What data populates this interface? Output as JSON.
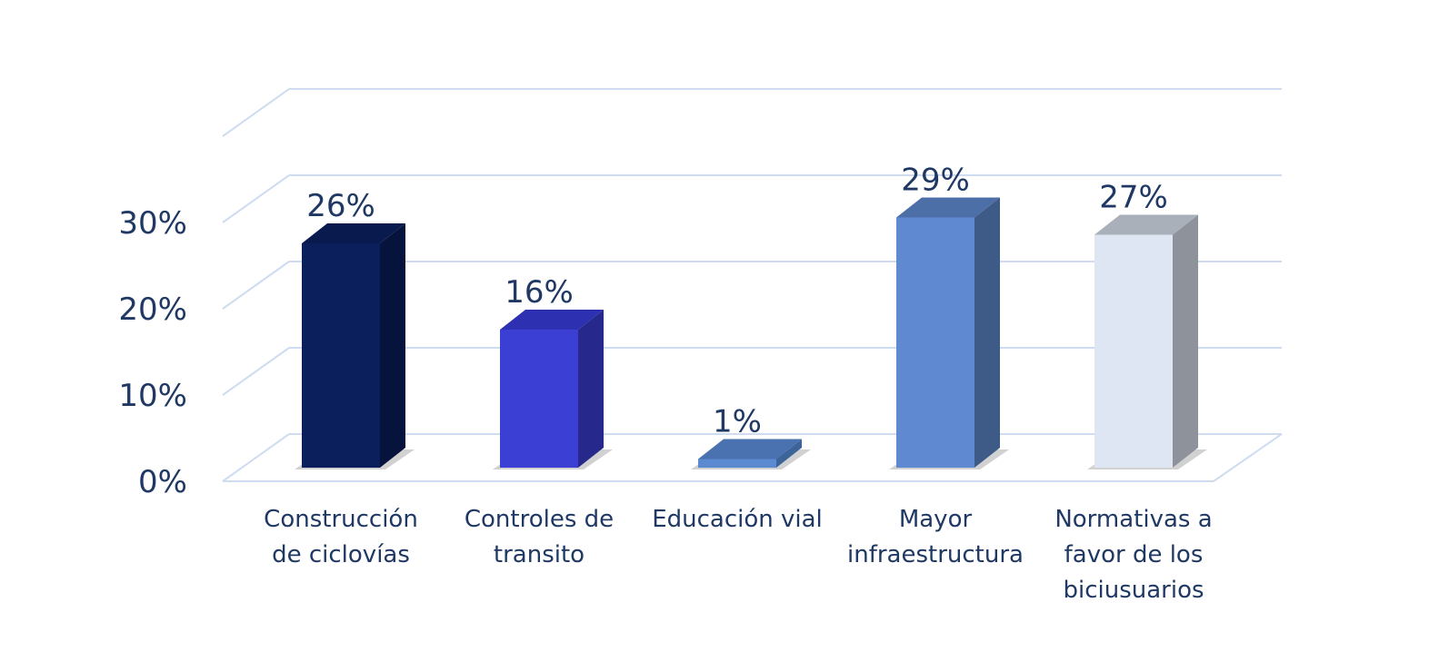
{
  "chart_data": {
    "type": "bar",
    "title": "",
    "xlabel": "",
    "ylabel": "",
    "categories": [
      [
        "Construcción",
        "de ciclovías"
      ],
      [
        "Controles de",
        "transito"
      ],
      [
        "Educación vial"
      ],
      [
        "Mayor",
        "infraestructura"
      ],
      [
        "Normativas a",
        "favor de los",
        "biciusuarios"
      ]
    ],
    "values": [
      26,
      16,
      1,
      29,
      27
    ],
    "data_labels": [
      "26%",
      "16%",
      "1%",
      "29%",
      "27%"
    ],
    "yticks": [
      0,
      10,
      20,
      30
    ],
    "ytick_labels": [
      "0%",
      "10%",
      "20%",
      "30%"
    ],
    "ylim": [
      0,
      35
    ],
    "grid": true,
    "legend": "none",
    "colors": [
      {
        "front": "#0a1f5c",
        "side": "#06143d",
        "top": "#081a4e"
      },
      {
        "front": "#3c3fd4",
        "side": "#26288c",
        "top": "#2d30b0"
      },
      {
        "front": "#5b8ad0",
        "side": "#3d6499",
        "top": "#4a72b0"
      },
      {
        "front": "#5f8ad2",
        "side": "#3e5a86",
        "top": "#4d6fa8"
      },
      {
        "front": "#dde6f2",
        "side": "#8e939b",
        "top": "#a9b0ba"
      }
    ],
    "gridline_color": "#cfdcf0",
    "text_color": "#1f3864"
  }
}
